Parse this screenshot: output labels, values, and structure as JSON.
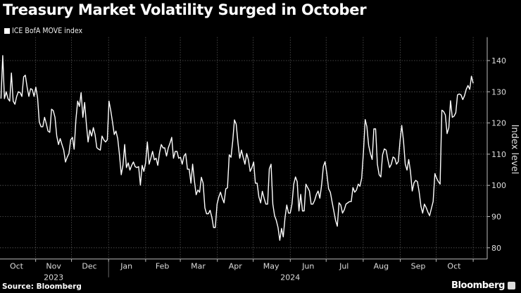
{
  "colors": {
    "background": "#000000",
    "line": "#ffffff",
    "grid": "#555555",
    "axis": "#bbbbbb"
  },
  "chart_data": {
    "type": "line",
    "title": "Treasury Market Volatility Surged in October",
    "ylabel": "Index level",
    "xlabel": "",
    "ylim": [
      76.4,
      147.5
    ],
    "yticks": [
      80,
      90,
      100,
      110,
      120,
      130,
      140
    ],
    "grid": true,
    "legend_position": "top-left",
    "x_unit": "days since 2023-10-01",
    "x_range": [
      2,
      397
    ],
    "month_boundaries": [
      31,
      61,
      92,
      123,
      152,
      183,
      213,
      244,
      274,
      305,
      336,
      366,
      397
    ],
    "x_tick_labels": [
      {
        "label": "Oct",
        "day": 15
      },
      {
        "label": "Nov",
        "day": 46
      },
      {
        "label": "Dec",
        "day": 76
      },
      {
        "label": "Jan",
        "day": 107
      },
      {
        "label": "Feb",
        "day": 137
      },
      {
        "label": "Mar",
        "day": 167
      },
      {
        "label": "Apr",
        "day": 198
      },
      {
        "label": "May",
        "day": 228
      },
      {
        "label": "Jun",
        "day": 259
      },
      {
        "label": "Jul",
        "day": 289
      },
      {
        "label": "Aug",
        "day": 320
      },
      {
        "label": "Sep",
        "day": 351
      },
      {
        "label": "Oct",
        "day": 381
      }
    ],
    "year_labels": [
      {
        "label": "2023",
        "day": 46
      },
      {
        "label": "2024",
        "day": 244
      }
    ],
    "year_separator_day": 92,
    "series": [
      {
        "name": "ICE BofA MOVE index",
        "values": [
          127.8,
          141.6,
          127.8,
          130,
          127.8,
          127,
          136,
          127,
          126,
          128.5,
          130,
          129.7,
          128.5,
          134.8,
          135.3,
          131.5,
          128.5,
          131,
          130.7,
          128.5,
          131.5,
          128,
          120.3,
          118.8,
          118.8,
          121.8,
          119.8,
          117.4,
          117,
          124.4,
          124,
          121.8,
          115.8,
          113.1,
          115,
          113.1,
          111.3,
          107.5,
          109,
          110.2,
          114.6,
          115.4,
          111.6,
          121,
          127,
          125.3,
          129.7,
          121.8,
          126.6,
          119.6,
          113.9,
          117.7,
          115.8,
          118.5,
          116.3,
          112.1,
          111.6,
          111.3,
          115.8,
          114.6,
          113.9,
          114.6,
          127,
          124,
          120.3,
          116.3,
          117.4,
          115,
          109.8,
          103.4,
          106.4,
          113.1,
          105.7,
          107.2,
          104.9,
          106.4,
          107.5,
          106,
          105.7,
          106,
          100.1,
          106.4,
          104.5,
          107.2,
          113.9,
          106.8,
          108.7,
          110.9,
          108.2,
          108.7,
          106.4,
          110.5,
          113.1,
          112,
          112,
          109.4,
          112,
          113.6,
          115.4,
          108.7,
          110.9,
          110.9,
          108.7,
          109,
          106.8,
          109.4,
          110.2,
          105.2,
          105.2,
          100.7,
          106.8,
          101.5,
          97,
          98.5,
          97.8,
          102.6,
          100.7,
          92.8,
          90.9,
          90.9,
          92,
          89.8,
          86.5,
          86.5,
          94,
          96.3,
          97.8,
          95.9,
          94.4,
          98.9,
          99.2,
          109.8,
          109,
          114.3,
          121,
          119.6,
          113.6,
          108.7,
          111.3,
          109,
          106.8,
          110.2,
          108.2,
          104.5,
          105.7,
          107.5,
          100.7,
          100.7,
          96.3,
          94.4,
          98.1,
          95.9,
          94,
          94,
          105.3,
          106.8,
          94,
          90.3,
          88.8,
          86.5,
          82.4,
          86.2,
          83.5,
          89.6,
          93.7,
          91.1,
          91.1,
          94,
          100.4,
          102.7,
          101.2,
          91.8,
          97.1,
          91.8,
          91.8,
          100.4,
          99.3,
          98.2,
          94,
          94,
          95.2,
          97.1,
          98.2,
          95.9,
          100.1,
          106.1,
          107.6,
          103.8,
          98.9,
          97.8,
          94.8,
          91.8,
          88.8,
          86.9,
          94.4,
          93.7,
          91.1,
          92.2,
          94,
          94.4,
          94.8,
          94.8,
          99.3,
          97.8,
          98.5,
          100.4,
          99.7,
          102.3,
          110.6,
          121.1,
          118.8,
          112.8,
          110.2,
          108.3,
          118.1,
          118.1,
          106.8,
          103.4,
          102.7,
          109.8,
          111.7,
          111.3,
          108.3,
          105.7,
          106.8,
          109.1,
          108.7,
          106.8,
          107.6,
          114.3,
          119.2,
          114.3,
          106.8,
          104.9,
          108.3,
          104.5,
          98.2,
          100.8,
          101.6,
          101.2,
          97.8,
          93.3,
          91.1,
          94,
          92.9,
          91.4,
          90.3,
          92.6,
          94.8,
          103.8,
          102.3,
          101.2,
          100.4,
          124.1,
          123.7,
          122.6,
          116.6,
          118.5,
          127.1,
          121.8,
          122.2,
          123.3,
          129,
          129.3,
          129,
          127.5,
          128.7,
          130.8,
          132,
          130.8,
          135,
          132.7
        ]
      }
    ]
  },
  "footer": {
    "source": "Source: Bloomberg",
    "brand": "Bloomberg"
  }
}
